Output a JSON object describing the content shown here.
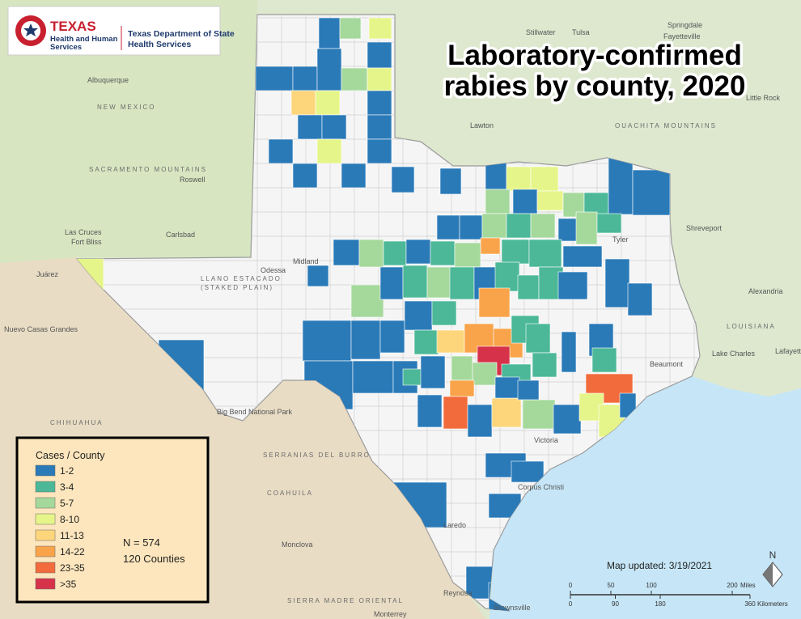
{
  "logo": {
    "agency": "TEXAS",
    "line1": "Health and Human",
    "line2": "Services",
    "dept1": "Texas Department of State",
    "dept2": "Health Services"
  },
  "title": {
    "line1": "Laboratory-confirmed",
    "line2": "rabies by county, 2020"
  },
  "legend": {
    "title": "Cases / County",
    "items": [
      {
        "label": "1-2",
        "color": "#2a7ab8"
      },
      {
        "label": "3-4",
        "color": "#4cb898"
      },
      {
        "label": "5-7",
        "color": "#a5d99c"
      },
      {
        "label": "8-10",
        "color": "#e6f58a"
      },
      {
        "label": "11-13",
        "color": "#fdd67c"
      },
      {
        "label": "14-22",
        "color": "#f9a44a"
      },
      {
        "label": "23-35",
        "color": "#f26b3c"
      },
      {
        "label": ">35",
        "color": "#d6334b"
      }
    ],
    "total": "N = 574",
    "counties": "120 Counties"
  },
  "updated": "Map updated: 3/19/2021",
  "scale": {
    "miles": [
      0,
      50,
      100,
      200
    ],
    "miles_unit": "Miles",
    "km": [
      0,
      90,
      180,
      360
    ],
    "km_unit": "Kilometers"
  },
  "north": "N",
  "places": [
    {
      "label": "NEW MEXICO"
    },
    {
      "label": "CHIHUAHUA"
    },
    {
      "label": "COAHUILA"
    },
    {
      "label": "LOUISIANA"
    },
    {
      "label": "Albuquerque"
    },
    {
      "label": "Roswell"
    },
    {
      "label": "Carlsbad"
    },
    {
      "label": "Las Cruces"
    },
    {
      "label": "Fort Bliss"
    },
    {
      "label": "Juárez"
    },
    {
      "label": "Nuevo Casas Grandes"
    },
    {
      "label": "Odessa"
    },
    {
      "label": "Midland"
    },
    {
      "label": "LLANO ESTACADO"
    },
    {
      "label": "(STAKED PLAIN)"
    },
    {
      "label": "Tulsa"
    },
    {
      "label": "Stillwater"
    },
    {
      "label": "Lawton"
    },
    {
      "label": "Little Rock"
    },
    {
      "label": "OUACHITA MOUNTAINS"
    },
    {
      "label": "Shreveport"
    },
    {
      "label": "Tyler"
    },
    {
      "label": "Alexandria"
    },
    {
      "label": "Lake Charles"
    },
    {
      "label": "Lafayette"
    },
    {
      "label": "Beaumont"
    },
    {
      "label": "Victoria"
    },
    {
      "label": "Corpus Christi"
    },
    {
      "label": "Laredo"
    },
    {
      "label": "Reynosa"
    },
    {
      "label": "Brownsville"
    },
    {
      "label": "Monclova"
    },
    {
      "label": "SERRANIAS DEL BURRO"
    },
    {
      "label": "SIERRA MADRE ORIENTAL"
    },
    {
      "label": "Big Bend National Park"
    },
    {
      "label": "SACRAMENTO MOUNTAINS"
    },
    {
      "label": "Monterrey"
    },
    {
      "label": "Fayetteville"
    },
    {
      "label": "Springdale"
    }
  ]
}
